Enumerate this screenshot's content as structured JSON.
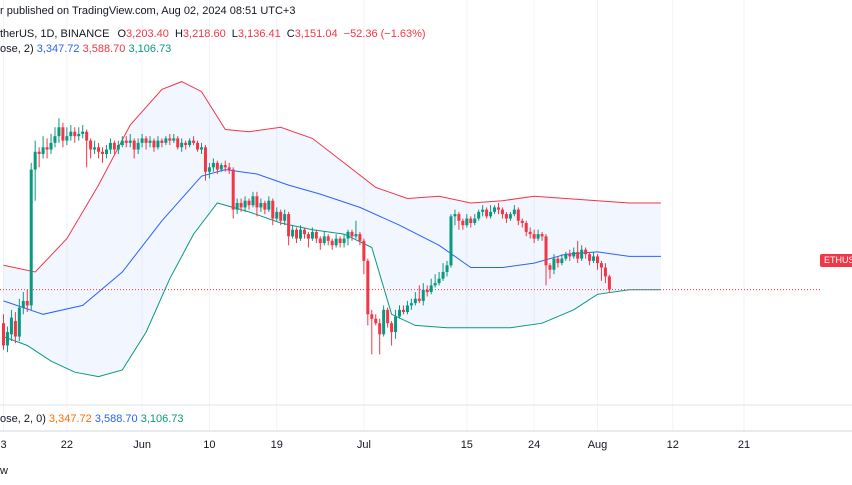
{
  "header": {
    "published": "r published on TradingView.com, Aug 02, 2024 08:51 UTC+3",
    "symbol": "therUS, 1D, BINANCE",
    "o_label": "O",
    "o_value": "3,203.40",
    "h_label": "H",
    "h_value": "3,218.60",
    "l_label": "L",
    "l_value": "3,136.41",
    "c_label": "C",
    "c_value": "3,151.04",
    "change": "−52.36 (−1.63%)",
    "bb_prefix": "ose, 2)",
    "bb_basis": "3,347.72",
    "bb_upper": "3,588.70",
    "bb_lower": "3,106.73"
  },
  "bottom_legend": {
    "prefix": "ose, 2, 0)",
    "basis": "3,347.72",
    "upper": "3,588.70",
    "lower": "3,106.73"
  },
  "price_tag": "ETHUS",
  "footer_text": "w",
  "colors": {
    "up": "#089981",
    "down": "#f23645",
    "upper_band": "#f23645",
    "lower_band": "#089981",
    "basis": "#2962ff",
    "band_fill": "#2962ff"
  },
  "chart_data": {
    "type": "candlestick",
    "x_ticks": [
      "3",
      "22",
      "Jun",
      "10",
      "19",
      "Jul",
      "15",
      "24",
      "Aug",
      "12",
      "21"
    ],
    "x_tick_index": [
      0,
      16,
      35,
      52,
      69,
      91,
      117,
      134,
      150,
      169,
      187
    ],
    "candles": [
      [
        3000,
        2900,
        3040,
        2880
      ],
      [
        2900,
        2960,
        2985,
        2870
      ],
      [
        2950,
        3025,
        3060,
        2920
      ],
      [
        3010,
        2940,
        3050,
        2910
      ],
      [
        2940,
        3070,
        3110,
        2920
      ],
      [
        3070,
        3100,
        3140,
        3040
      ],
      [
        3100,
        3080,
        3150,
        3050
      ],
      [
        3080,
        3690,
        3720,
        3060
      ],
      [
        3690,
        3770,
        3820,
        3550
      ],
      [
        3770,
        3760,
        3790,
        3700
      ],
      [
        3760,
        3790,
        3840,
        3740
      ],
      [
        3790,
        3780,
        3830,
        3740
      ],
      [
        3780,
        3810,
        3850,
        3760
      ],
      [
        3810,
        3840,
        3880,
        3790
      ],
      [
        3840,
        3880,
        3920,
        3810
      ],
      [
        3880,
        3820,
        3900,
        3790
      ],
      [
        3820,
        3840,
        3880,
        3800
      ],
      [
        3840,
        3860,
        3890,
        3820
      ],
      [
        3860,
        3840,
        3880,
        3810
      ],
      [
        3840,
        3850,
        3880,
        3820
      ],
      [
        3850,
        3860,
        3890,
        3830
      ],
      [
        3860,
        3820,
        3870,
        3700
      ],
      [
        3820,
        3780,
        3830,
        3740
      ],
      [
        3780,
        3790,
        3820,
        3760
      ],
      [
        3790,
        3770,
        3810,
        3740
      ],
      [
        3770,
        3760,
        3790,
        3720
      ],
      [
        3760,
        3780,
        3800,
        3740
      ],
      [
        3780,
        3810,
        3830,
        3760
      ],
      [
        3810,
        3780,
        3820,
        3760
      ],
      [
        3780,
        3800,
        3820,
        3760
      ],
      [
        3800,
        3820,
        3840,
        3790
      ],
      [
        3820,
        3810,
        3840,
        3790
      ],
      [
        3810,
        3820,
        3850,
        3790
      ],
      [
        3820,
        3780,
        3830,
        3740
      ],
      [
        3780,
        3810,
        3830,
        3760
      ],
      [
        3810,
        3830,
        3850,
        3790
      ],
      [
        3830,
        3810,
        3840,
        3780
      ],
      [
        3810,
        3820,
        3840,
        3790
      ],
      [
        3820,
        3790,
        3830,
        3770
      ],
      [
        3790,
        3820,
        3840,
        3780
      ],
      [
        3820,
        3810,
        3830,
        3790
      ],
      [
        3810,
        3830,
        3840,
        3800
      ],
      [
        3830,
        3820,
        3850,
        3800
      ],
      [
        3820,
        3830,
        3850,
        3810
      ],
      [
        3830,
        3790,
        3840,
        3780
      ],
      [
        3790,
        3810,
        3830,
        3770
      ],
      [
        3810,
        3800,
        3820,
        3780
      ],
      [
        3800,
        3820,
        3830,
        3790
      ],
      [
        3820,
        3810,
        3840,
        3800
      ],
      [
        3810,
        3780,
        3820,
        3770
      ],
      [
        3780,
        3790,
        3810,
        3760
      ],
      [
        3790,
        3680,
        3800,
        3640
      ],
      [
        3680,
        3700,
        3720,
        3650
      ],
      [
        3700,
        3720,
        3740,
        3680
      ],
      [
        3720,
        3690,
        3730,
        3670
      ],
      [
        3690,
        3710,
        3720,
        3680
      ],
      [
        3710,
        3700,
        3730,
        3680
      ],
      [
        3700,
        3690,
        3720,
        3670
      ],
      [
        3690,
        3510,
        3700,
        3470
      ],
      [
        3510,
        3540,
        3560,
        3490
      ],
      [
        3540,
        3520,
        3560,
        3500
      ],
      [
        3520,
        3550,
        3570,
        3500
      ],
      [
        3550,
        3530,
        3560,
        3510
      ],
      [
        3530,
        3570,
        3590,
        3520
      ],
      [
        3570,
        3520,
        3590,
        3480
      ],
      [
        3520,
        3540,
        3560,
        3500
      ],
      [
        3540,
        3510,
        3550,
        3490
      ],
      [
        3510,
        3550,
        3570,
        3500
      ],
      [
        3550,
        3470,
        3560,
        3440
      ],
      [
        3470,
        3500,
        3520,
        3460
      ],
      [
        3500,
        3460,
        3510,
        3440
      ],
      [
        3460,
        3490,
        3510,
        3440
      ],
      [
        3490,
        3390,
        3500,
        3350
      ],
      [
        3390,
        3420,
        3440,
        3380
      ],
      [
        3420,
        3380,
        3430,
        3360
      ],
      [
        3380,
        3420,
        3440,
        3370
      ],
      [
        3420,
        3400,
        3430,
        3380
      ],
      [
        3400,
        3380,
        3410,
        3340
      ],
      [
        3380,
        3410,
        3430,
        3370
      ],
      [
        3410,
        3380,
        3420,
        3360
      ],
      [
        3380,
        3360,
        3390,
        3330
      ],
      [
        3360,
        3390,
        3410,
        3350
      ],
      [
        3390,
        3370,
        3400,
        3350
      ],
      [
        3370,
        3350,
        3380,
        3330
      ],
      [
        3350,
        3380,
        3400,
        3340
      ],
      [
        3380,
        3360,
        3390,
        3340
      ],
      [
        3360,
        3380,
        3400,
        3340
      ],
      [
        3380,
        3410,
        3420,
        3350
      ],
      [
        3410,
        3390,
        3420,
        3370
      ],
      [
        3390,
        3400,
        3460,
        3380
      ],
      [
        3400,
        3370,
        3410,
        3350
      ],
      [
        3370,
        3280,
        3380,
        3220
      ],
      [
        3280,
        3040,
        3290,
        2990
      ],
      [
        3040,
        3020,
        3060,
        2860
      ],
      [
        3020,
        3000,
        3040,
        2990
      ],
      [
        3000,
        2950,
        3020,
        2860
      ],
      [
        2950,
        3060,
        3080,
        2940
      ],
      [
        3060,
        3000,
        3070,
        2980
      ],
      [
        3000,
        2960,
        3010,
        2900
      ],
      [
        2960,
        3030,
        3060,
        2930
      ],
      [
        3030,
        3060,
        3080,
        3020
      ],
      [
        3060,
        3050,
        3080,
        3040
      ],
      [
        3050,
        3080,
        3100,
        3040
      ],
      [
        3080,
        3090,
        3110,
        3060
      ],
      [
        3090,
        3110,
        3140,
        3080
      ],
      [
        3110,
        3100,
        3170,
        3090
      ],
      [
        3100,
        3150,
        3180,
        3080
      ],
      [
        3150,
        3140,
        3170,
        3120
      ],
      [
        3140,
        3170,
        3200,
        3130
      ],
      [
        3170,
        3180,
        3220,
        3160
      ],
      [
        3180,
        3200,
        3230,
        3170
      ],
      [
        3200,
        3230,
        3270,
        3190
      ],
      [
        3230,
        3260,
        3280,
        3210
      ],
      [
        3260,
        3480,
        3490,
        3250
      ],
      [
        3480,
        3490,
        3510,
        3440
      ],
      [
        3490,
        3460,
        3500,
        3420
      ],
      [
        3460,
        3440,
        3470,
        3420
      ],
      [
        3440,
        3470,
        3490,
        3430
      ],
      [
        3470,
        3450,
        3480,
        3430
      ],
      [
        3450,
        3470,
        3490,
        3440
      ],
      [
        3470,
        3500,
        3510,
        3460
      ],
      [
        3500,
        3510,
        3530,
        3480
      ],
      [
        3510,
        3480,
        3520,
        3470
      ],
      [
        3480,
        3500,
        3530,
        3470
      ],
      [
        3500,
        3520,
        3530,
        3490
      ],
      [
        3520,
        3510,
        3540,
        3490
      ],
      [
        3510,
        3490,
        3520,
        3470
      ],
      [
        3490,
        3470,
        3500,
        3450
      ],
      [
        3470,
        3490,
        3500,
        3460
      ],
      [
        3490,
        3510,
        3530,
        3480
      ],
      [
        3510,
        3460,
        3520,
        3440
      ],
      [
        3460,
        3450,
        3470,
        3430
      ],
      [
        3450,
        3410,
        3460,
        3390
      ],
      [
        3410,
        3400,
        3430,
        3380
      ],
      [
        3400,
        3380,
        3420,
        3360
      ],
      [
        3380,
        3400,
        3420,
        3370
      ],
      [
        3400,
        3390,
        3410,
        3370
      ],
      [
        3390,
        3260,
        3400,
        3170
      ],
      [
        3260,
        3240,
        3270,
        3200
      ],
      [
        3240,
        3290,
        3310,
        3220
      ],
      [
        3290,
        3270,
        3300,
        3250
      ],
      [
        3270,
        3290,
        3310,
        3260
      ],
      [
        3290,
        3310,
        3320,
        3280
      ],
      [
        3310,
        3300,
        3330,
        3280
      ],
      [
        3300,
        3320,
        3340,
        3290
      ],
      [
        3320,
        3290,
        3370,
        3270
      ],
      [
        3290,
        3330,
        3350,
        3280
      ],
      [
        3330,
        3310,
        3340,
        3290
      ],
      [
        3310,
        3280,
        3320,
        3260
      ],
      [
        3280,
        3300,
        3320,
        3270
      ],
      [
        3300,
        3270,
        3310,
        3240
      ],
      [
        3270,
        3250,
        3280,
        3190
      ],
      [
        3250,
        3210,
        3270,
        3180
      ],
      [
        3210,
        3151,
        3218,
        3136
      ]
    ],
    "upper_band": [
      [
        0,
        3260
      ],
      [
        8,
        3230
      ],
      [
        16,
        3380
      ],
      [
        24,
        3620
      ],
      [
        32,
        3890
      ],
      [
        40,
        4050
      ],
      [
        45,
        4085
      ],
      [
        50,
        4040
      ],
      [
        56,
        3870
      ],
      [
        62,
        3860
      ],
      [
        70,
        3880
      ],
      [
        78,
        3830
      ],
      [
        86,
        3720
      ],
      [
        94,
        3610
      ],
      [
        102,
        3560
      ],
      [
        110,
        3570
      ],
      [
        118,
        3540
      ],
      [
        126,
        3550
      ],
      [
        134,
        3570
      ],
      [
        142,
        3560
      ],
      [
        150,
        3550
      ],
      [
        158,
        3540
      ],
      [
        166,
        3540
      ]
    ],
    "basis": [
      [
        0,
        3100
      ],
      [
        10,
        3040
      ],
      [
        20,
        3080
      ],
      [
        30,
        3230
      ],
      [
        40,
        3460
      ],
      [
        50,
        3660
      ],
      [
        56,
        3690
      ],
      [
        64,
        3670
      ],
      [
        72,
        3620
      ],
      [
        80,
        3580
      ],
      [
        90,
        3520
      ],
      [
        100,
        3440
      ],
      [
        110,
        3350
      ],
      [
        118,
        3250
      ],
      [
        126,
        3250
      ],
      [
        134,
        3270
      ],
      [
        142,
        3310
      ],
      [
        150,
        3320
      ],
      [
        158,
        3300
      ],
      [
        166,
        3300
      ]
    ],
    "lower_band": [
      [
        0,
        2940
      ],
      [
        6,
        2900
      ],
      [
        12,
        2830
      ],
      [
        18,
        2780
      ],
      [
        24,
        2760
      ],
      [
        30,
        2790
      ],
      [
        36,
        2960
      ],
      [
        42,
        3200
      ],
      [
        48,
        3400
      ],
      [
        54,
        3540
      ],
      [
        62,
        3500
      ],
      [
        70,
        3450
      ],
      [
        78,
        3420
      ],
      [
        86,
        3400
      ],
      [
        93,
        3340
      ],
      [
        98,
        3040
      ],
      [
        104,
        2990
      ],
      [
        112,
        2980
      ],
      [
        120,
        2980
      ],
      [
        128,
        2980
      ],
      [
        136,
        3000
      ],
      [
        144,
        3060
      ],
      [
        150,
        3130
      ],
      [
        158,
        3150
      ],
      [
        166,
        3150
      ]
    ],
    "last_price_line": 3151.04,
    "y_range": [
      2700,
      4200
    ]
  }
}
